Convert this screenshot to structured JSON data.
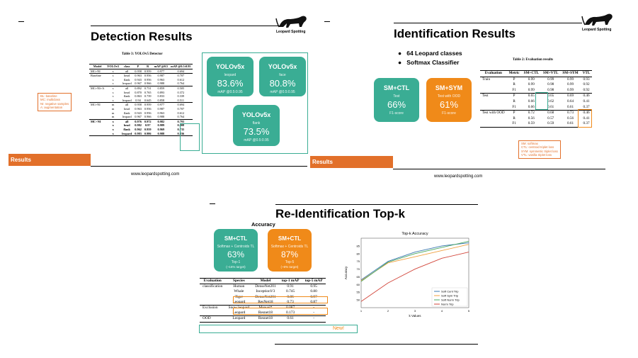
{
  "slide1": {
    "title": "Detection Results",
    "logo": "Leopard Spotting",
    "results_label": "Results",
    "url": "www.leopardspotting.com",
    "table_caption": "Table 3: YOLOv5 Detector",
    "table_headers": [
      "Model",
      "YOLOv5",
      "class",
      "P",
      "R",
      "mAP @0.5",
      "mAP @0.5:0.95"
    ],
    "table_rows": [
      [
        "MC+NI",
        "s",
        "all",
        "0.958",
        "0.959",
        "0.977",
        "0.694"
      ],
      [
        "Baseline",
        "s",
        "head",
        "0.963",
        "0.956",
        "0.987",
        "0.707"
      ],
      [
        "",
        "s",
        "flank",
        "0.943",
        "0.956",
        "0.963",
        "0.612"
      ],
      [
        "",
        "s",
        "leopard",
        "0.967",
        "0.966",
        "0.988",
        "0.764"
      ],
      [
        "MC+NI+A",
        "s",
        "all",
        "0.892",
        "0.731",
        "0.859",
        "0.505"
      ],
      [
        "",
        "s",
        "head",
        "0.870",
        "0.765",
        "0.893",
        "0.372"
      ],
      [
        "",
        "s",
        "flank",
        "0.863",
        "0.739",
        "0.833",
        "0.339"
      ],
      [
        "",
        "s",
        "leopard",
        "0.94",
        "0.645",
        "0.858",
        "0.511"
      ],
      [
        "MC+NI",
        "m",
        "all",
        "0.958",
        "0.959",
        "0.977",
        "0.694"
      ],
      [
        "",
        "m",
        "head",
        "0.963",
        "0.956",
        "0.987",
        "0.707"
      ],
      [
        "",
        "m",
        "flank",
        "0.943",
        "0.956",
        "0.963",
        "0.612"
      ],
      [
        "",
        "m",
        "leopard",
        "0.967",
        "0.966",
        "0.988",
        "0.764"
      ],
      [
        "MC+NI",
        "x",
        "all",
        "0.976",
        "0.972",
        "0.982",
        "0.793"
      ],
      [
        "",
        "x",
        "head",
        "0.982",
        "0.97",
        "0.989",
        "0.808"
      ],
      [
        "",
        "x",
        "flank",
        "0.962",
        "0.959",
        "0.969",
        "0.735"
      ],
      [
        "",
        "x",
        "leopard",
        "0.983",
        "0.986",
        "0.988",
        "0.836"
      ]
    ],
    "note": [
      "BL: baseline",
      "MC: multiclass",
      "NI: negative samples",
      "A: augmentation"
    ],
    "cards": [
      {
        "title": "YOLOv5x",
        "sub": "leopard",
        "value": "83.6%",
        "metric": "mAP @0.5:0.95"
      },
      {
        "title": "YOLOv5x",
        "sub": "face",
        "value": "80.8%",
        "metric": "mAP @0.5:0.95"
      },
      {
        "title": "YOLOv5x",
        "sub": "flank",
        "value": "73.5%",
        "metric": "mAP @0.5:0.95"
      }
    ]
  },
  "slide2": {
    "title": "Identification Results",
    "logo": "Leopard Spotting",
    "results_label": "Results",
    "url": "www.leopardspotting.com",
    "bullets": [
      "64 Leopard classes",
      "Softmax Classifier"
    ],
    "cards": [
      {
        "title": "SM+CTL",
        "sub": "Test",
        "value": "66%",
        "metric": "F1-score"
      },
      {
        "title": "SM+SYM",
        "sub": "Test with OOD",
        "value": "61%",
        "metric": "F1-score"
      }
    ],
    "table_caption": "Table 2: Evaluation results",
    "table_headers": [
      "Evaluation",
      "Metric",
      "SM+CTL",
      "SM+VTL",
      "SM+SYM",
      "VTL"
    ],
    "table_rows": [
      [
        "Train",
        "P",
        "0.99",
        "0.99",
        "0.99",
        "0.93"
      ],
      [
        "",
        "R",
        "0.99",
        "0.98",
        "0.99",
        "0.92"
      ],
      [
        "",
        "F1",
        "0.99",
        "0.98",
        "0.99",
        "0.92"
      ],
      [
        "Test",
        "P",
        "0.65",
        "0.65",
        "0.69",
        "0.46"
      ],
      [
        "",
        "R",
        "0.66",
        "0.62",
        "0.64",
        "0.41"
      ],
      [
        "",
        "F1",
        "0.66",
        "0.61",
        "0.61",
        "0.37"
      ],
      [
        "Test with OOD",
        "P",
        "0.72",
        "0.68",
        "0.73",
        "0.46"
      ],
      [
        "",
        "R",
        "0.56",
        "0.57",
        "0.56",
        "0.41"
      ],
      [
        "",
        "F1",
        "0.59",
        "0.59",
        "0.61",
        "0.37"
      ]
    ],
    "note": [
      "SM: softmax",
      "CTL: centroid triplet loss",
      "SYM: symmetric triplet loss",
      "VTL: vanilla triplet loss"
    ]
  },
  "slide3": {
    "title": "Re-Identification Top-k",
    "subtitle": "Accuracy",
    "cards": [
      {
        "title": "SM+CTL",
        "sub": "Softmax + Centroids TL",
        "value": "63%",
        "metric": "Top-1",
        "note": "(~16% target)"
      },
      {
        "title": "SM+CTL",
        "sub": "Softmax + Centroids TL",
        "value": "87%",
        "metric": "Top-5",
        "note": "(~6% target)"
      }
    ],
    "table_headers": [
      "Evaluation",
      "Species",
      "Model",
      "top-1 mAP",
      "top-5 mAP"
    ],
    "table_rows": [
      [
        "classification",
        "Human",
        "DenseNet201",
        "0.91",
        "0.95"
      ],
      [
        "",
        "Whale",
        "InceptionV3",
        "0.745",
        "0.80"
      ],
      [
        "",
        "Tiger",
        "DenseNet201",
        "0.86",
        "0.97"
      ],
      [
        "",
        "Leopard",
        "ResNet18",
        "0.73",
        "0.87"
      ],
      [
        "Exclusion",
        "Snow leopard",
        "Manual*",
        "0.087",
        "-"
      ],
      [
        "",
        "Leopard",
        "Resnet18",
        "0.173",
        "-"
      ],
      [
        "OOD",
        "Leopard",
        "Resnet18",
        "0.61",
        "-"
      ]
    ],
    "new_label": "New!"
  },
  "chart_data": {
    "type": "line",
    "title": "Top-k Accuracy",
    "xlabel": "k Values",
    "ylabel": "Accuracy",
    "x": [
      1,
      2,
      3,
      4,
      5
    ],
    "xlim": [
      1,
      5
    ],
    "ylim": [
      45,
      90
    ],
    "yticks": [
      50,
      55,
      60,
      65,
      70,
      75,
      80,
      85
    ],
    "legend_position": "lower-right",
    "series": [
      {
        "name": "Soft Cent Trip",
        "color": "#3b78b0",
        "values": [
          63,
          75,
          81,
          85,
          87
        ]
      },
      {
        "name": "Soft Sym Trip",
        "color": "#f0a040",
        "values": [
          62.5,
          74,
          78,
          82,
          86
        ]
      },
      {
        "name": "Soft Norm Trip",
        "color": "#4aa860",
        "values": [
          62,
          74.5,
          80,
          84,
          88
        ]
      },
      {
        "name": "Norm Trip",
        "color": "#d2453a",
        "values": [
          49,
          61,
          70,
          77,
          81
        ]
      }
    ]
  }
}
